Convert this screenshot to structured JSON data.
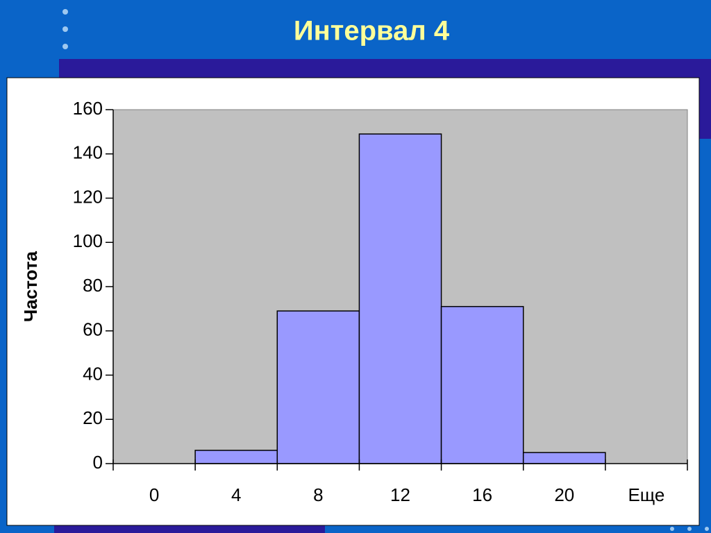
{
  "chart_data": {
    "type": "bar",
    "title": "Интервал 4",
    "y_label": "Частота",
    "categories": [
      "0",
      "4",
      "8",
      "12",
      "16",
      "20",
      "Еще"
    ],
    "values": [
      0,
      6,
      69,
      149,
      71,
      5,
      0
    ],
    "color": "#9999ff",
    "ylim": [
      0,
      160
    ],
    "yticks": [
      0,
      20,
      40,
      60,
      80,
      100,
      120,
      140,
      160
    ]
  }
}
